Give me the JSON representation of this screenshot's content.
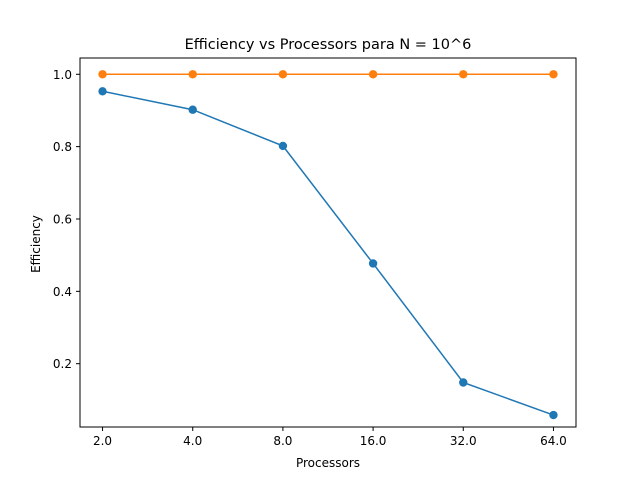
{
  "chart_data": {
    "type": "line",
    "title": "Efficiency vs Processors para N = 10^6",
    "xlabel": "Processors",
    "ylabel": "Efficiency",
    "x_scale": "log2",
    "x": [
      2,
      4,
      8,
      16,
      32,
      64
    ],
    "x_tick_labels": [
      "2.0",
      "4.0",
      "8.0",
      "16.0",
      "32.0",
      "64.0"
    ],
    "ylim": [
      0.025,
      1.045
    ],
    "y_ticks": [
      0.2,
      0.4,
      0.6,
      0.8,
      1.0
    ],
    "y_tick_labels": [
      "0.2",
      "0.4",
      "0.6",
      "0.8",
      "1.0"
    ],
    "grid": false,
    "legend": "none",
    "series": [
      {
        "color": "#1f77b4",
        "marker": "circle",
        "values": [
          0.953,
          0.902,
          0.802,
          0.477,
          0.148,
          0.058
        ]
      },
      {
        "color": "#ff7f0e",
        "marker": "circle",
        "values": [
          1.0,
          1.0,
          1.0,
          1.0,
          1.0,
          1.0
        ]
      }
    ]
  }
}
